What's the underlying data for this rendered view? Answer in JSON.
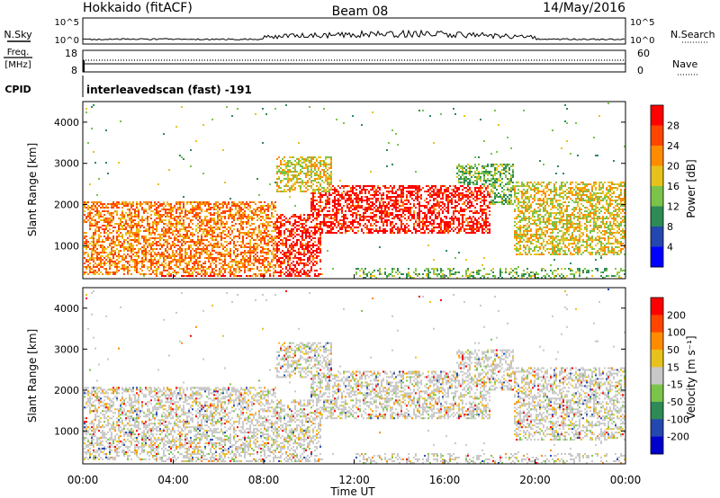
{
  "header": {
    "site": "Hokkaido (fitACF)",
    "beam": "Beam 08",
    "date": "14/May/2016"
  },
  "strips": {
    "nsky": {
      "label": "N.Sky",
      "ticks_left": [
        "10^5",
        "10^0"
      ],
      "ticks_right": [
        "10^5",
        "10^0"
      ],
      "right_label": "N.Search"
    },
    "freq": {
      "label_top": "Freq.",
      "label_bottom": "[MHz]",
      "ticks_left": [
        "18",
        "8"
      ],
      "ticks_right": [
        "60",
        "0"
      ],
      "right_label": "Nave"
    },
    "cpid": {
      "label": "CPID",
      "text": "interleavedscan (fast) -191"
    }
  },
  "chart_data": [
    {
      "type": "heatmap",
      "name": "power-panel",
      "ylabel": "Slant Range [km]",
      "yticks": [
        "1000",
        "2000",
        "3000",
        "4000"
      ],
      "ylim": [
        200,
        4500
      ],
      "xlim_hours": [
        0,
        24
      ],
      "colorbar_label": "Power [dB]",
      "colorbar_ticks": [
        "4",
        "8",
        "12",
        "16",
        "20",
        "24",
        "28"
      ],
      "colorbar_colors": [
        "#0000ff",
        "#2448b0",
        "#2e8b57",
        "#7cc34a",
        "#e8c21c",
        "#ff8c00",
        "#ff4500",
        "#ff0000"
      ],
      "echo_bands_hours_km": [
        {
          "t": [
            0.0,
            8.5
          ],
          "r": [
            300,
            2100
          ],
          "level": "mid-high"
        },
        {
          "t": [
            3.0,
            10.5
          ],
          "r": [
            250,
            1800
          ],
          "level": "high"
        },
        {
          "t": [
            8.5,
            11.0
          ],
          "r": [
            2300,
            3200
          ],
          "level": "mid"
        },
        {
          "t": [
            10.0,
            18.0
          ],
          "r": [
            1300,
            2500
          ],
          "level": "high"
        },
        {
          "t": [
            16.5,
            19.0
          ],
          "r": [
            2000,
            3000
          ],
          "level": "low-mid"
        },
        {
          "t": [
            19.0,
            24.0
          ],
          "r": [
            800,
            2600
          ],
          "level": "mid"
        }
      ]
    },
    {
      "type": "heatmap",
      "name": "velocity-panel",
      "ylabel": "Slant Range [km]",
      "yticks": [
        "1000",
        "2000",
        "3000",
        "4000"
      ],
      "ylim": [
        200,
        4500
      ],
      "xlim_hours": [
        0,
        24
      ],
      "xticks": [
        "00:00",
        "04:00",
        "08:00",
        "12:00",
        "16:00",
        "20:00",
        "00:00"
      ],
      "xlabel": "Time UT",
      "colorbar_label": "Velocity [m s⁻¹]",
      "colorbar_ticks": [
        "200",
        "100",
        "50",
        "15",
        "-15",
        "-50",
        "-100",
        "-200"
      ],
      "colorbar_colors": [
        "#0000cc",
        "#2448b0",
        "#2e8b57",
        "#7cc34a",
        "#c8c8c8",
        "#e8c21c",
        "#ff8c00",
        "#ff4500",
        "#ff0000"
      ]
    }
  ]
}
